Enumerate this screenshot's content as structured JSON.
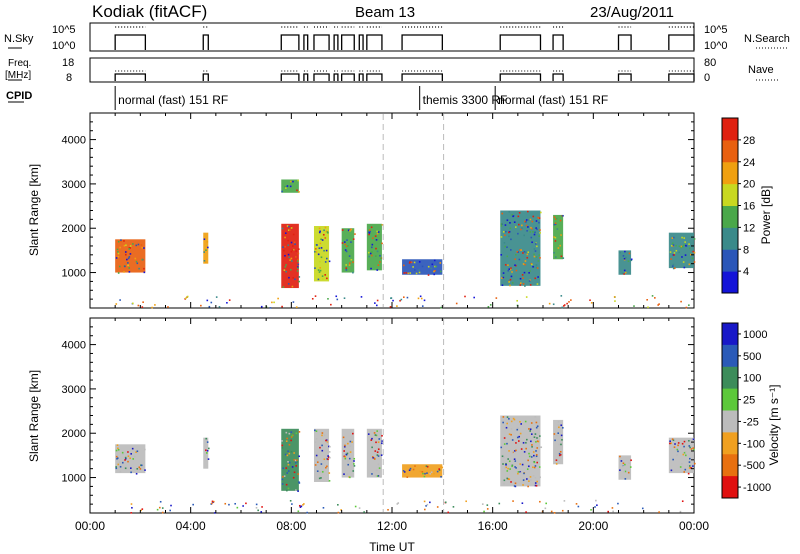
{
  "header": {
    "station": "Kodiak (fitACF)",
    "beam": "Beam 13",
    "date": "23/Aug/2011"
  },
  "strips": {
    "nsky_label": "N.Sky",
    "nsky_ticks": [
      "10^5",
      "10^0"
    ],
    "nsearch_label": "N.Search",
    "nsearch_ticks": [
      "10^5",
      "10^0"
    ],
    "freq_label_1": "Freq.",
    "freq_label_2": "[MHz]",
    "freq_ticks": [
      "18",
      "8"
    ],
    "nave_label": "Nave",
    "nave_ticks": [
      "80",
      "0"
    ],
    "cpid_label": "CPID",
    "cpid_segments": [
      {
        "label": "normal (fast) 151 RF",
        "start": 1.0
      },
      {
        "label": "themis 3300 RF",
        "start": 13.1
      },
      {
        "label": "normal (fast) 151 RF",
        "start": 16.1
      }
    ]
  },
  "chart_data": [
    {
      "type": "heatmap",
      "panel": "power",
      "xlabel": "",
      "ylabel": "Slant Range [km]",
      "xlim": [
        0,
        24
      ],
      "ylim": [
        200,
        4600
      ],
      "yticks": [
        "1000",
        "2000",
        "3000",
        "4000"
      ],
      "colorbar_label": "Power [dB]",
      "colorbar_ticks": [
        "4",
        "8",
        "12",
        "16",
        "20",
        "24",
        "28"
      ],
      "colors": [
        "#1414d8",
        "#2a56b8",
        "#3a8a8a",
        "#4aa84a",
        "#c8d820",
        "#f0a010",
        "#e86010",
        "#e02010"
      ],
      "patches": [
        {
          "t0": 1.0,
          "t1": 2.2,
          "r0": 1000,
          "r1": 1750,
          "c": "#e86010"
        },
        {
          "t0": 4.5,
          "t1": 4.7,
          "r0": 1200,
          "r1": 1900,
          "c": "#f0a010"
        },
        {
          "t0": 7.6,
          "t1": 8.3,
          "r0": 650,
          "r1": 2100,
          "c": "#e02010"
        },
        {
          "t0": 7.6,
          "t1": 8.3,
          "r0": 2800,
          "r1": 3100,
          "c": "#4aa84a"
        },
        {
          "t0": 8.9,
          "t1": 9.5,
          "r0": 800,
          "r1": 2050,
          "c": "#c8d820"
        },
        {
          "t0": 10.0,
          "t1": 10.5,
          "r0": 1000,
          "r1": 2000,
          "c": "#4aa84a"
        },
        {
          "t0": 11.0,
          "t1": 11.6,
          "r0": 1050,
          "r1": 2100,
          "c": "#4aa84a"
        },
        {
          "t0": 12.4,
          "t1": 14.0,
          "r0": 950,
          "r1": 1300,
          "c": "#2a56b8"
        },
        {
          "t0": 16.3,
          "t1": 17.9,
          "r0": 700,
          "r1": 2400,
          "c": "#3a8a8a"
        },
        {
          "t0": 18.4,
          "t1": 18.8,
          "r0": 1300,
          "r1": 2300,
          "c": "#4aa84a"
        },
        {
          "t0": 21.0,
          "t1": 21.5,
          "r0": 950,
          "r1": 1500,
          "c": "#3a8a8a"
        },
        {
          "t0": 23.0,
          "t1": 24.0,
          "r0": 1100,
          "r1": 1900,
          "c": "#3a8a8a"
        }
      ]
    },
    {
      "type": "heatmap",
      "panel": "velocity",
      "xlabel": "Time UT",
      "ylabel": "Slant Range [km]",
      "xlim": [
        0,
        24
      ],
      "ylim": [
        200,
        4600
      ],
      "xticks": [
        "00:00",
        "04:00",
        "08:00",
        "12:00",
        "16:00",
        "20:00",
        "00:00"
      ],
      "yticks": [
        "1000",
        "2000",
        "3000",
        "4000"
      ],
      "colorbar_label": "Velocity [m s⁻¹]",
      "colorbar_ticks": [
        "1000",
        "500",
        "100",
        "25",
        "-25",
        "-100",
        "-500",
        "-1000"
      ],
      "colors": [
        "#1818c8",
        "#2a5ab8",
        "#3c8c5a",
        "#5cc83a",
        "#bcbcbc",
        "#f0a020",
        "#e87010",
        "#e01010"
      ],
      "patches": [
        {
          "t0": 1.0,
          "t1": 2.2,
          "r0": 1100,
          "r1": 1750,
          "c": "#bcbcbc"
        },
        {
          "t0": 4.5,
          "t1": 4.7,
          "r0": 1200,
          "r1": 1900,
          "c": "#bcbcbc"
        },
        {
          "t0": 7.6,
          "t1": 8.3,
          "r0": 700,
          "r1": 2100,
          "c": "#3c8c5a"
        },
        {
          "t0": 8.9,
          "t1": 9.5,
          "r0": 900,
          "r1": 2100,
          "c": "#bcbcbc"
        },
        {
          "t0": 10.0,
          "t1": 10.5,
          "r0": 1000,
          "r1": 2100,
          "c": "#bcbcbc"
        },
        {
          "t0": 11.0,
          "t1": 11.6,
          "r0": 1000,
          "r1": 2100,
          "c": "#bcbcbc"
        },
        {
          "t0": 12.4,
          "t1": 14.0,
          "r0": 1000,
          "r1": 1300,
          "c": "#f0a020"
        },
        {
          "t0": 16.3,
          "t1": 17.9,
          "r0": 800,
          "r1": 2400,
          "c": "#bcbcbc"
        },
        {
          "t0": 18.4,
          "t1": 18.8,
          "r0": 1300,
          "r1": 2300,
          "c": "#bcbcbc"
        },
        {
          "t0": 21.0,
          "t1": 21.5,
          "r0": 950,
          "r1": 1500,
          "c": "#bcbcbc"
        },
        {
          "t0": 23.0,
          "t1": 24.0,
          "r0": 1100,
          "r1": 1900,
          "c": "#bcbcbc"
        }
      ]
    }
  ]
}
